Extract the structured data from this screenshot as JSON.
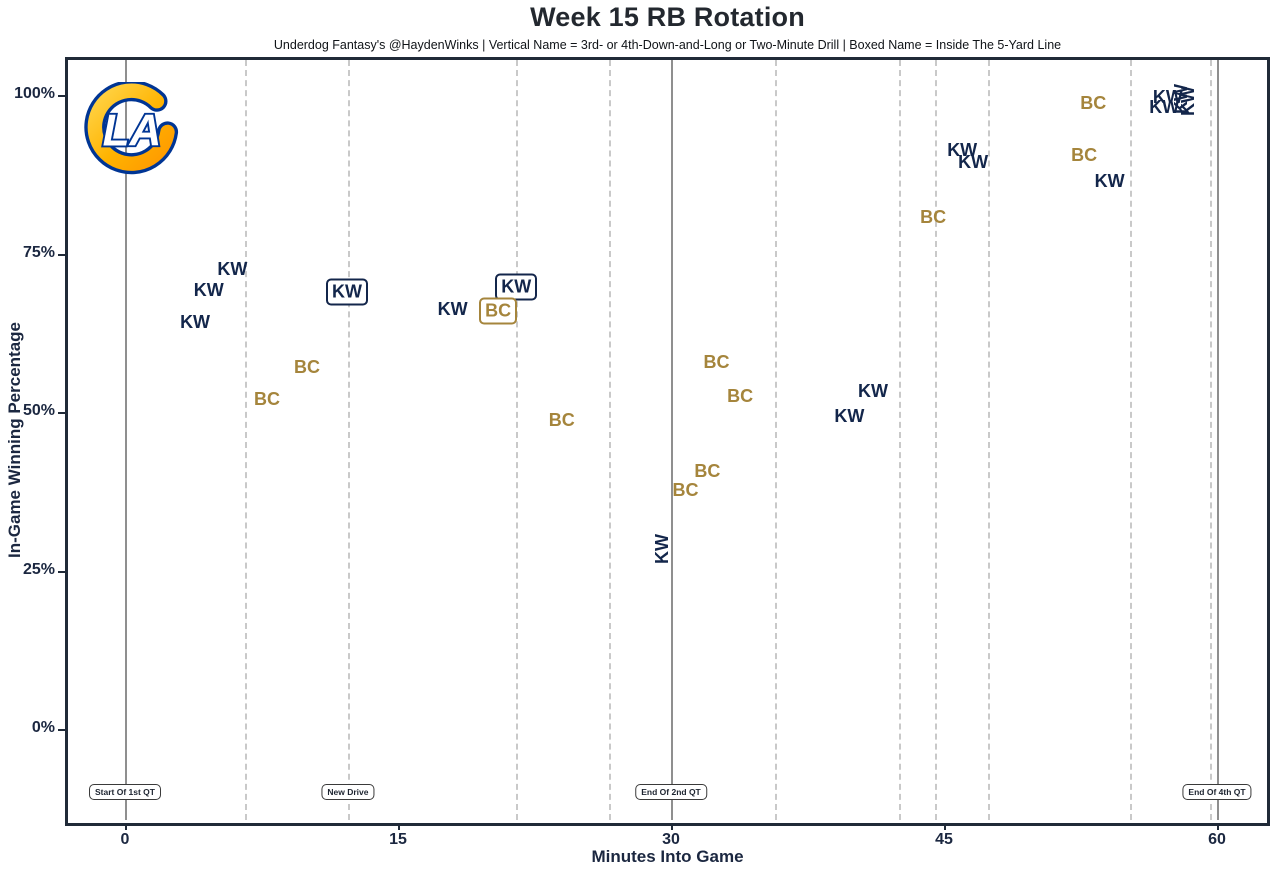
{
  "header": {
    "title": "Week 15 RB Rotation",
    "subtitle": "Underdog Fantasy's @HaydenWinks | Vertical Name = 3rd- or 4th-Down-and-Long or Two-Minute Drill | Boxed Name = Inside The 5-Yard Line"
  },
  "logo": {
    "team": "Los Angeles Rams",
    "letters": "LA",
    "navy": "#003594",
    "gold_light": "#FFD54A",
    "gold_dark": "#FF9800"
  },
  "colors": {
    "kw": "#13264b",
    "bc": "#a5853c",
    "grid_solid": "#8f8f8f",
    "grid_dashed": "#c9c9c9",
    "panel_border": "#202a38",
    "axis_text": "#1b2740"
  },
  "chart_data": {
    "type": "scatter",
    "title": "Week 15 RB Rotation",
    "subtitle": "Underdog Fantasy's @HaydenWinks | Vertical Name = 3rd- or 4th-Down-and-Long or Two-Minute Drill | Boxed Name = Inside The 5-Yard Line",
    "xlabel": "Minutes Into Game",
    "ylabel": "In-Game Winning Percentage",
    "xlim": [
      -3.5,
      63
    ],
    "ylim": [
      -15,
      106
    ],
    "grid": "vertical-only",
    "legend": "none",
    "x_ticks": [
      {
        "label": "0",
        "value": 0
      },
      {
        "label": "15",
        "value": 15
      },
      {
        "label": "30",
        "value": 30
      },
      {
        "label": "45",
        "value": 45
      },
      {
        "label": "60",
        "value": 60
      }
    ],
    "y_ticks": [
      {
        "label": "100%",
        "value": 100
      },
      {
        "label": "75%",
        "value": 75
      },
      {
        "label": "50%",
        "value": 50
      },
      {
        "label": "25%",
        "value": 25
      },
      {
        "label": "0%",
        "value": 0
      }
    ],
    "vlines": [
      {
        "x": 0,
        "style": "solid",
        "label": "Start Of 1st QT"
      },
      {
        "x": 6.6,
        "style": "dashed"
      },
      {
        "x": 12.25,
        "style": "dashed",
        "label": "New Drive"
      },
      {
        "x": 21.5,
        "style": "dashed"
      },
      {
        "x": 26.6,
        "style": "dashed"
      },
      {
        "x": 30,
        "style": "solid",
        "label": "End Of 2nd QT"
      },
      {
        "x": 35.7,
        "style": "dashed"
      },
      {
        "x": 42.5,
        "style": "dashed"
      },
      {
        "x": 44.5,
        "style": "dashed"
      },
      {
        "x": 47.4,
        "style": "dashed"
      },
      {
        "x": 55.2,
        "style": "dashed"
      },
      {
        "x": 59.6,
        "style": "dashed"
      },
      {
        "x": 60,
        "style": "solid",
        "label": "End Of 4th QT"
      }
    ],
    "series": [
      {
        "name": "KW",
        "key": "kw",
        "color": "#13264b",
        "points": [
          {
            "x": 3.85,
            "y": 64.2
          },
          {
            "x": 4.6,
            "y": 69.2
          },
          {
            "x": 5.9,
            "y": 72.6
          },
          {
            "x": 12.2,
            "y": 68.9,
            "style": "boxed"
          },
          {
            "x": 18.0,
            "y": 66.2
          },
          {
            "x": 21.5,
            "y": 69.7,
            "style": "boxed"
          },
          {
            "x": 29.5,
            "y": 28.4,
            "style": "vertical"
          },
          {
            "x": 39.8,
            "y": 49.4
          },
          {
            "x": 41.1,
            "y": 53.3
          },
          {
            "x": 46.0,
            "y": 91.3
          },
          {
            "x": 46.6,
            "y": 89.4
          },
          {
            "x": 54.1,
            "y": 86.4
          },
          {
            "x": 57.1,
            "y": 98.1
          },
          {
            "x": 57.3,
            "y": 99.7
          },
          {
            "x": 58.0,
            "y": 99.4,
            "style": "vertical"
          },
          {
            "x": 58.4,
            "y": 99.0,
            "style": "vertical"
          }
        ]
      },
      {
        "name": "BC",
        "key": "bc",
        "color": "#a5853c",
        "points": [
          {
            "x": 7.8,
            "y": 52.1
          },
          {
            "x": 10.0,
            "y": 57.1
          },
          {
            "x": 20.5,
            "y": 65.9,
            "style": "boxed"
          },
          {
            "x": 24.0,
            "y": 48.7
          },
          {
            "x": 30.8,
            "y": 37.7
          },
          {
            "x": 32.0,
            "y": 40.7
          },
          {
            "x": 32.5,
            "y": 57.9
          },
          {
            "x": 33.8,
            "y": 52.5
          },
          {
            "x": 44.4,
            "y": 80.8
          },
          {
            "x": 52.7,
            "y": 90.5
          },
          {
            "x": 53.2,
            "y": 98.7
          }
        ]
      }
    ]
  }
}
